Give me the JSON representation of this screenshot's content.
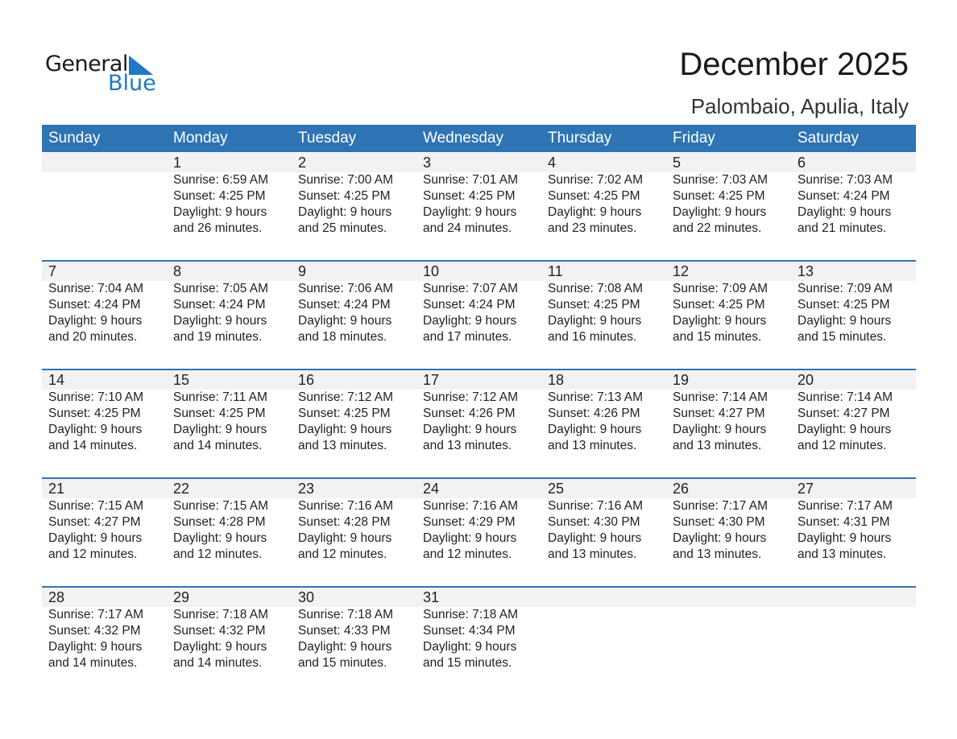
{
  "logo": {
    "word1": "General",
    "word2": "Blue",
    "color": "#1f78c8"
  },
  "title": "December 2025",
  "location": "Palombaio, Apulia, Italy",
  "header_color": "#2e74b5",
  "weekdays": [
    "Sunday",
    "Monday",
    "Tuesday",
    "Wednesday",
    "Thursday",
    "Friday",
    "Saturday"
  ],
  "weeks": [
    [
      null,
      {
        "day": "1",
        "sunrise": "Sunrise: 6:59 AM",
        "sunset": "Sunset: 4:25 PM",
        "daylight": "Daylight: 9 hours",
        "minutes": "and 26 minutes."
      },
      {
        "day": "2",
        "sunrise": "Sunrise: 7:00 AM",
        "sunset": "Sunset: 4:25 PM",
        "daylight": "Daylight: 9 hours",
        "minutes": "and 25 minutes."
      },
      {
        "day": "3",
        "sunrise": "Sunrise: 7:01 AM",
        "sunset": "Sunset: 4:25 PM",
        "daylight": "Daylight: 9 hours",
        "minutes": "and 24 minutes."
      },
      {
        "day": "4",
        "sunrise": "Sunrise: 7:02 AM",
        "sunset": "Sunset: 4:25 PM",
        "daylight": "Daylight: 9 hours",
        "minutes": "and 23 minutes."
      },
      {
        "day": "5",
        "sunrise": "Sunrise: 7:03 AM",
        "sunset": "Sunset: 4:25 PM",
        "daylight": "Daylight: 9 hours",
        "minutes": "and 22 minutes."
      },
      {
        "day": "6",
        "sunrise": "Sunrise: 7:03 AM",
        "sunset": "Sunset: 4:24 PM",
        "daylight": "Daylight: 9 hours",
        "minutes": "and 21 minutes."
      }
    ],
    [
      {
        "day": "7",
        "sunrise": "Sunrise: 7:04 AM",
        "sunset": "Sunset: 4:24 PM",
        "daylight": "Daylight: 9 hours",
        "minutes": "and 20 minutes."
      },
      {
        "day": "8",
        "sunrise": "Sunrise: 7:05 AM",
        "sunset": "Sunset: 4:24 PM",
        "daylight": "Daylight: 9 hours",
        "minutes": "and 19 minutes."
      },
      {
        "day": "9",
        "sunrise": "Sunrise: 7:06 AM",
        "sunset": "Sunset: 4:24 PM",
        "daylight": "Daylight: 9 hours",
        "minutes": "and 18 minutes."
      },
      {
        "day": "10",
        "sunrise": "Sunrise: 7:07 AM",
        "sunset": "Sunset: 4:24 PM",
        "daylight": "Daylight: 9 hours",
        "minutes": "and 17 minutes."
      },
      {
        "day": "11",
        "sunrise": "Sunrise: 7:08 AM",
        "sunset": "Sunset: 4:25 PM",
        "daylight": "Daylight: 9 hours",
        "minutes": "and 16 minutes."
      },
      {
        "day": "12",
        "sunrise": "Sunrise: 7:09 AM",
        "sunset": "Sunset: 4:25 PM",
        "daylight": "Daylight: 9 hours",
        "minutes": "and 15 minutes."
      },
      {
        "day": "13",
        "sunrise": "Sunrise: 7:09 AM",
        "sunset": "Sunset: 4:25 PM",
        "daylight": "Daylight: 9 hours",
        "minutes": "and 15 minutes."
      }
    ],
    [
      {
        "day": "14",
        "sunrise": "Sunrise: 7:10 AM",
        "sunset": "Sunset: 4:25 PM",
        "daylight": "Daylight: 9 hours",
        "minutes": "and 14 minutes."
      },
      {
        "day": "15",
        "sunrise": "Sunrise: 7:11 AM",
        "sunset": "Sunset: 4:25 PM",
        "daylight": "Daylight: 9 hours",
        "minutes": "and 14 minutes."
      },
      {
        "day": "16",
        "sunrise": "Sunrise: 7:12 AM",
        "sunset": "Sunset: 4:25 PM",
        "daylight": "Daylight: 9 hours",
        "minutes": "and 13 minutes."
      },
      {
        "day": "17",
        "sunrise": "Sunrise: 7:12 AM",
        "sunset": "Sunset: 4:26 PM",
        "daylight": "Daylight: 9 hours",
        "minutes": "and 13 minutes."
      },
      {
        "day": "18",
        "sunrise": "Sunrise: 7:13 AM",
        "sunset": "Sunset: 4:26 PM",
        "daylight": "Daylight: 9 hours",
        "minutes": "and 13 minutes."
      },
      {
        "day": "19",
        "sunrise": "Sunrise: 7:14 AM",
        "sunset": "Sunset: 4:27 PM",
        "daylight": "Daylight: 9 hours",
        "minutes": "and 13 minutes."
      },
      {
        "day": "20",
        "sunrise": "Sunrise: 7:14 AM",
        "sunset": "Sunset: 4:27 PM",
        "daylight": "Daylight: 9 hours",
        "minutes": "and 12 minutes."
      }
    ],
    [
      {
        "day": "21",
        "sunrise": "Sunrise: 7:15 AM",
        "sunset": "Sunset: 4:27 PM",
        "daylight": "Daylight: 9 hours",
        "minutes": "and 12 minutes."
      },
      {
        "day": "22",
        "sunrise": "Sunrise: 7:15 AM",
        "sunset": "Sunset: 4:28 PM",
        "daylight": "Daylight: 9 hours",
        "minutes": "and 12 minutes."
      },
      {
        "day": "23",
        "sunrise": "Sunrise: 7:16 AM",
        "sunset": "Sunset: 4:28 PM",
        "daylight": "Daylight: 9 hours",
        "minutes": "and 12 minutes."
      },
      {
        "day": "24",
        "sunrise": "Sunrise: 7:16 AM",
        "sunset": "Sunset: 4:29 PM",
        "daylight": "Daylight: 9 hours",
        "minutes": "and 12 minutes."
      },
      {
        "day": "25",
        "sunrise": "Sunrise: 7:16 AM",
        "sunset": "Sunset: 4:30 PM",
        "daylight": "Daylight: 9 hours",
        "minutes": "and 13 minutes."
      },
      {
        "day": "26",
        "sunrise": "Sunrise: 7:17 AM",
        "sunset": "Sunset: 4:30 PM",
        "daylight": "Daylight: 9 hours",
        "minutes": "and 13 minutes."
      },
      {
        "day": "27",
        "sunrise": "Sunrise: 7:17 AM",
        "sunset": "Sunset: 4:31 PM",
        "daylight": "Daylight: 9 hours",
        "minutes": "and 13 minutes."
      }
    ],
    [
      {
        "day": "28",
        "sunrise": "Sunrise: 7:17 AM",
        "sunset": "Sunset: 4:32 PM",
        "daylight": "Daylight: 9 hours",
        "minutes": "and 14 minutes."
      },
      {
        "day": "29",
        "sunrise": "Sunrise: 7:18 AM",
        "sunset": "Sunset: 4:32 PM",
        "daylight": "Daylight: 9 hours",
        "minutes": "and 14 minutes."
      },
      {
        "day": "30",
        "sunrise": "Sunrise: 7:18 AM",
        "sunset": "Sunset: 4:33 PM",
        "daylight": "Daylight: 9 hours",
        "minutes": "and 15 minutes."
      },
      {
        "day": "31",
        "sunrise": "Sunrise: 7:18 AM",
        "sunset": "Sunset: 4:34 PM",
        "daylight": "Daylight: 9 hours",
        "minutes": "and 15 minutes."
      },
      null,
      null,
      null
    ]
  ]
}
